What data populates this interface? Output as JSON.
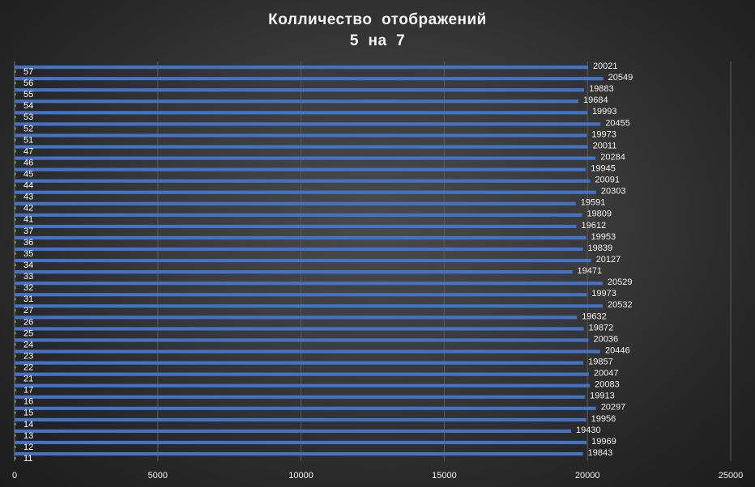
{
  "chart_data": {
    "type": "bar",
    "orientation": "horizontal",
    "title": "Колличество  отображений",
    "subtitle": "5  на  7",
    "xlim": [
      0,
      25000
    ],
    "xticks": [
      0,
      5000,
      10000,
      15000,
      20000,
      25000
    ],
    "grid": true,
    "categories": [
      "57",
      "56",
      "55",
      "54",
      "53",
      "52",
      "51",
      "47",
      "46",
      "45",
      "44",
      "43",
      "42",
      "41",
      "37",
      "36",
      "35",
      "34",
      "33",
      "32",
      "31",
      "27",
      "26",
      "25",
      "24",
      "23",
      "22",
      "21",
      "17",
      "16",
      "15",
      "14",
      "13",
      "12",
      "11"
    ],
    "series": [
      {
        "values": [
          20021,
          20549,
          19883,
          19684,
          19993,
          20455,
          19973,
          20011,
          20284,
          19945,
          20091,
          20303,
          19591,
          19809,
          19612,
          19953,
          19839,
          20127,
          19471,
          20529,
          19973,
          20532,
          19632,
          19872,
          20036,
          20446,
          19857,
          20047,
          20083,
          19913,
          20297,
          19956,
          19430,
          19969,
          19843
        ]
      }
    ],
    "bar_color": "#4472c4",
    "secondary_tick_color": "#70ad47"
  }
}
